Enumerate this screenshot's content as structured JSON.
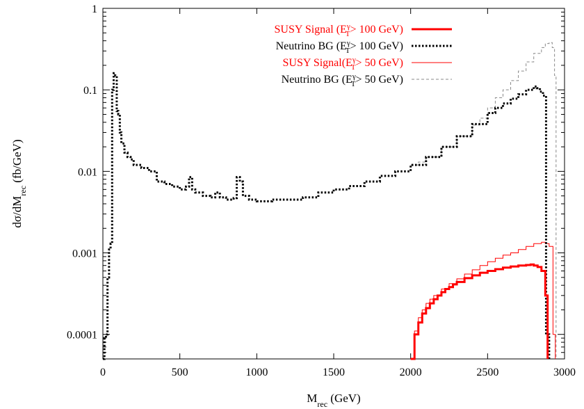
{
  "chart_data": {
    "type": "line",
    "xlabel": "M",
    "xlabel_sub": "rec",
    "xlabel_unit": " (GeV)",
    "ylabel": "dσ/dM",
    "ylabel_sub": "rec",
    "ylabel_unit": " (fb/GeV)",
    "xlim": [
      0,
      3000
    ],
    "ylim": [
      5e-05,
      1
    ],
    "yscale": "log",
    "grid": false,
    "legend_position": "top-right",
    "x_ticks": [
      {
        "value": 0,
        "label": "0"
      },
      {
        "value": 500,
        "label": "500"
      },
      {
        "value": 1000,
        "label": "1000"
      },
      {
        "value": 1500,
        "label": "1500"
      },
      {
        "value": 2000,
        "label": "2000"
      },
      {
        "value": 2500,
        "label": "2500"
      },
      {
        "value": 3000,
        "label": "3000"
      }
    ],
    "y_ticks": [
      {
        "value": 1,
        "label": "1"
      },
      {
        "value": 0.1,
        "label": "0.1"
      },
      {
        "value": 0.01,
        "label": "0.01"
      },
      {
        "value": 0.001,
        "label": "0.001"
      },
      {
        "value": 0.0001,
        "label": "0.0001"
      }
    ],
    "series": [
      {
        "name": "SUSY Signal (E",
        "legend_sup": "γ",
        "legend_sub": "T",
        "legend_rest": "> 100 GeV)",
        "color": "#ff0000",
        "text_color": "#ff0000",
        "style": "thick-solid",
        "x": [
          2000,
          2025,
          2050,
          2075,
          2100,
          2125,
          2150,
          2175,
          2200,
          2225,
          2250,
          2275,
          2300,
          2350,
          2400,
          2450,
          2500,
          2550,
          2600,
          2650,
          2700,
          2750,
          2780,
          2800,
          2825,
          2850,
          2875,
          2890
        ],
        "y": [
          5e-05,
          0.0001,
          0.00014,
          0.00018,
          0.00021,
          0.00024,
          0.00027,
          0.0003,
          0.00033,
          0.00036,
          0.00038,
          0.00041,
          0.00044,
          0.00049,
          0.00053,
          0.00057,
          0.0006,
          0.00063,
          0.00066,
          0.00068,
          0.0007,
          0.00071,
          0.00072,
          0.0007,
          0.00067,
          0.0006,
          0.0003,
          5e-05
        ]
      },
      {
        "name": "Neutrino BG (E",
        "legend_sup": "γ",
        "legend_sub": "T",
        "legend_rest": "> 100 GeV)",
        "color": "#000000",
        "text_color": "#000000",
        "style": "thick-dotted",
        "x": [
          0,
          10,
          20,
          30,
          40,
          50,
          60,
          70,
          80,
          90,
          100,
          110,
          120,
          140,
          160,
          180,
          200,
          250,
          300,
          350,
          400,
          450,
          500,
          540,
          560,
          580,
          600,
          650,
          700,
          730,
          760,
          800,
          850,
          870,
          890,
          910,
          950,
          1000,
          1100,
          1200,
          1300,
          1400,
          1500,
          1600,
          1700,
          1800,
          1900,
          2000,
          2100,
          2200,
          2300,
          2400,
          2500,
          2550,
          2600,
          2650,
          2700,
          2750,
          2800,
          2820,
          2840,
          2860,
          2880,
          2900
        ],
        "y": [
          5e-05,
          9e-05,
          0.0001,
          0.0005,
          0.0011,
          0.0013,
          0.1,
          0.16,
          0.15,
          0.055,
          0.05,
          0.03,
          0.022,
          0.017,
          0.015,
          0.014,
          0.012,
          0.011,
          0.01,
          0.0075,
          0.007,
          0.0065,
          0.006,
          0.0065,
          0.0085,
          0.006,
          0.0055,
          0.005,
          0.0048,
          0.0055,
          0.0048,
          0.0045,
          0.0047,
          0.0085,
          0.0075,
          0.005,
          0.0045,
          0.0043,
          0.0045,
          0.0045,
          0.0048,
          0.0055,
          0.006,
          0.0066,
          0.0075,
          0.0088,
          0.01,
          0.012,
          0.015,
          0.02,
          0.027,
          0.038,
          0.052,
          0.06,
          0.068,
          0.078,
          0.088,
          0.1,
          0.11,
          0.105,
          0.095,
          0.085,
          0.0001,
          5e-05
        ]
      },
      {
        "name": "SUSY Signal(E",
        "legend_sup": "γ",
        "legend_sub": "T",
        "legend_rest": "> 50 GeV)",
        "color": "#ff0000",
        "text_color": "#ff0000",
        "style": "thin-solid",
        "x": [
          2000,
          2025,
          2050,
          2075,
          2100,
          2125,
          2150,
          2200,
          2250,
          2300,
          2350,
          2400,
          2450,
          2500,
          2550,
          2600,
          2650,
          2700,
          2750,
          2800,
          2850,
          2875,
          2900,
          2925,
          2940
        ],
        "y": [
          5e-05,
          0.00011,
          0.00016,
          0.0002,
          0.00024,
          0.00027,
          0.0003,
          0.00036,
          0.00042,
          0.00048,
          0.00055,
          0.00062,
          0.0007,
          0.00078,
          0.00086,
          0.00094,
          0.001,
          0.0011,
          0.0012,
          0.0013,
          0.00135,
          0.0013,
          0.0012,
          0.0001,
          5e-05
        ]
      },
      {
        "name": "Neutrino BG (E",
        "legend_sup": "γ",
        "legend_sub": "T",
        "legend_rest": "> 50 GeV)",
        "color": "#888888",
        "text_color": "#000000",
        "style": "thin-dashed",
        "x": [
          2000,
          2050,
          2100,
          2200,
          2300,
          2400,
          2450,
          2500,
          2550,
          2600,
          2650,
          2700,
          2750,
          2800,
          2850,
          2875,
          2900,
          2920,
          2935,
          2945
        ],
        "y": [
          0.012,
          0.013,
          0.015,
          0.02,
          0.027,
          0.037,
          0.045,
          0.06,
          0.08,
          0.1,
          0.13,
          0.17,
          0.22,
          0.28,
          0.33,
          0.37,
          0.38,
          0.33,
          0.15,
          5e-05
        ]
      }
    ]
  }
}
